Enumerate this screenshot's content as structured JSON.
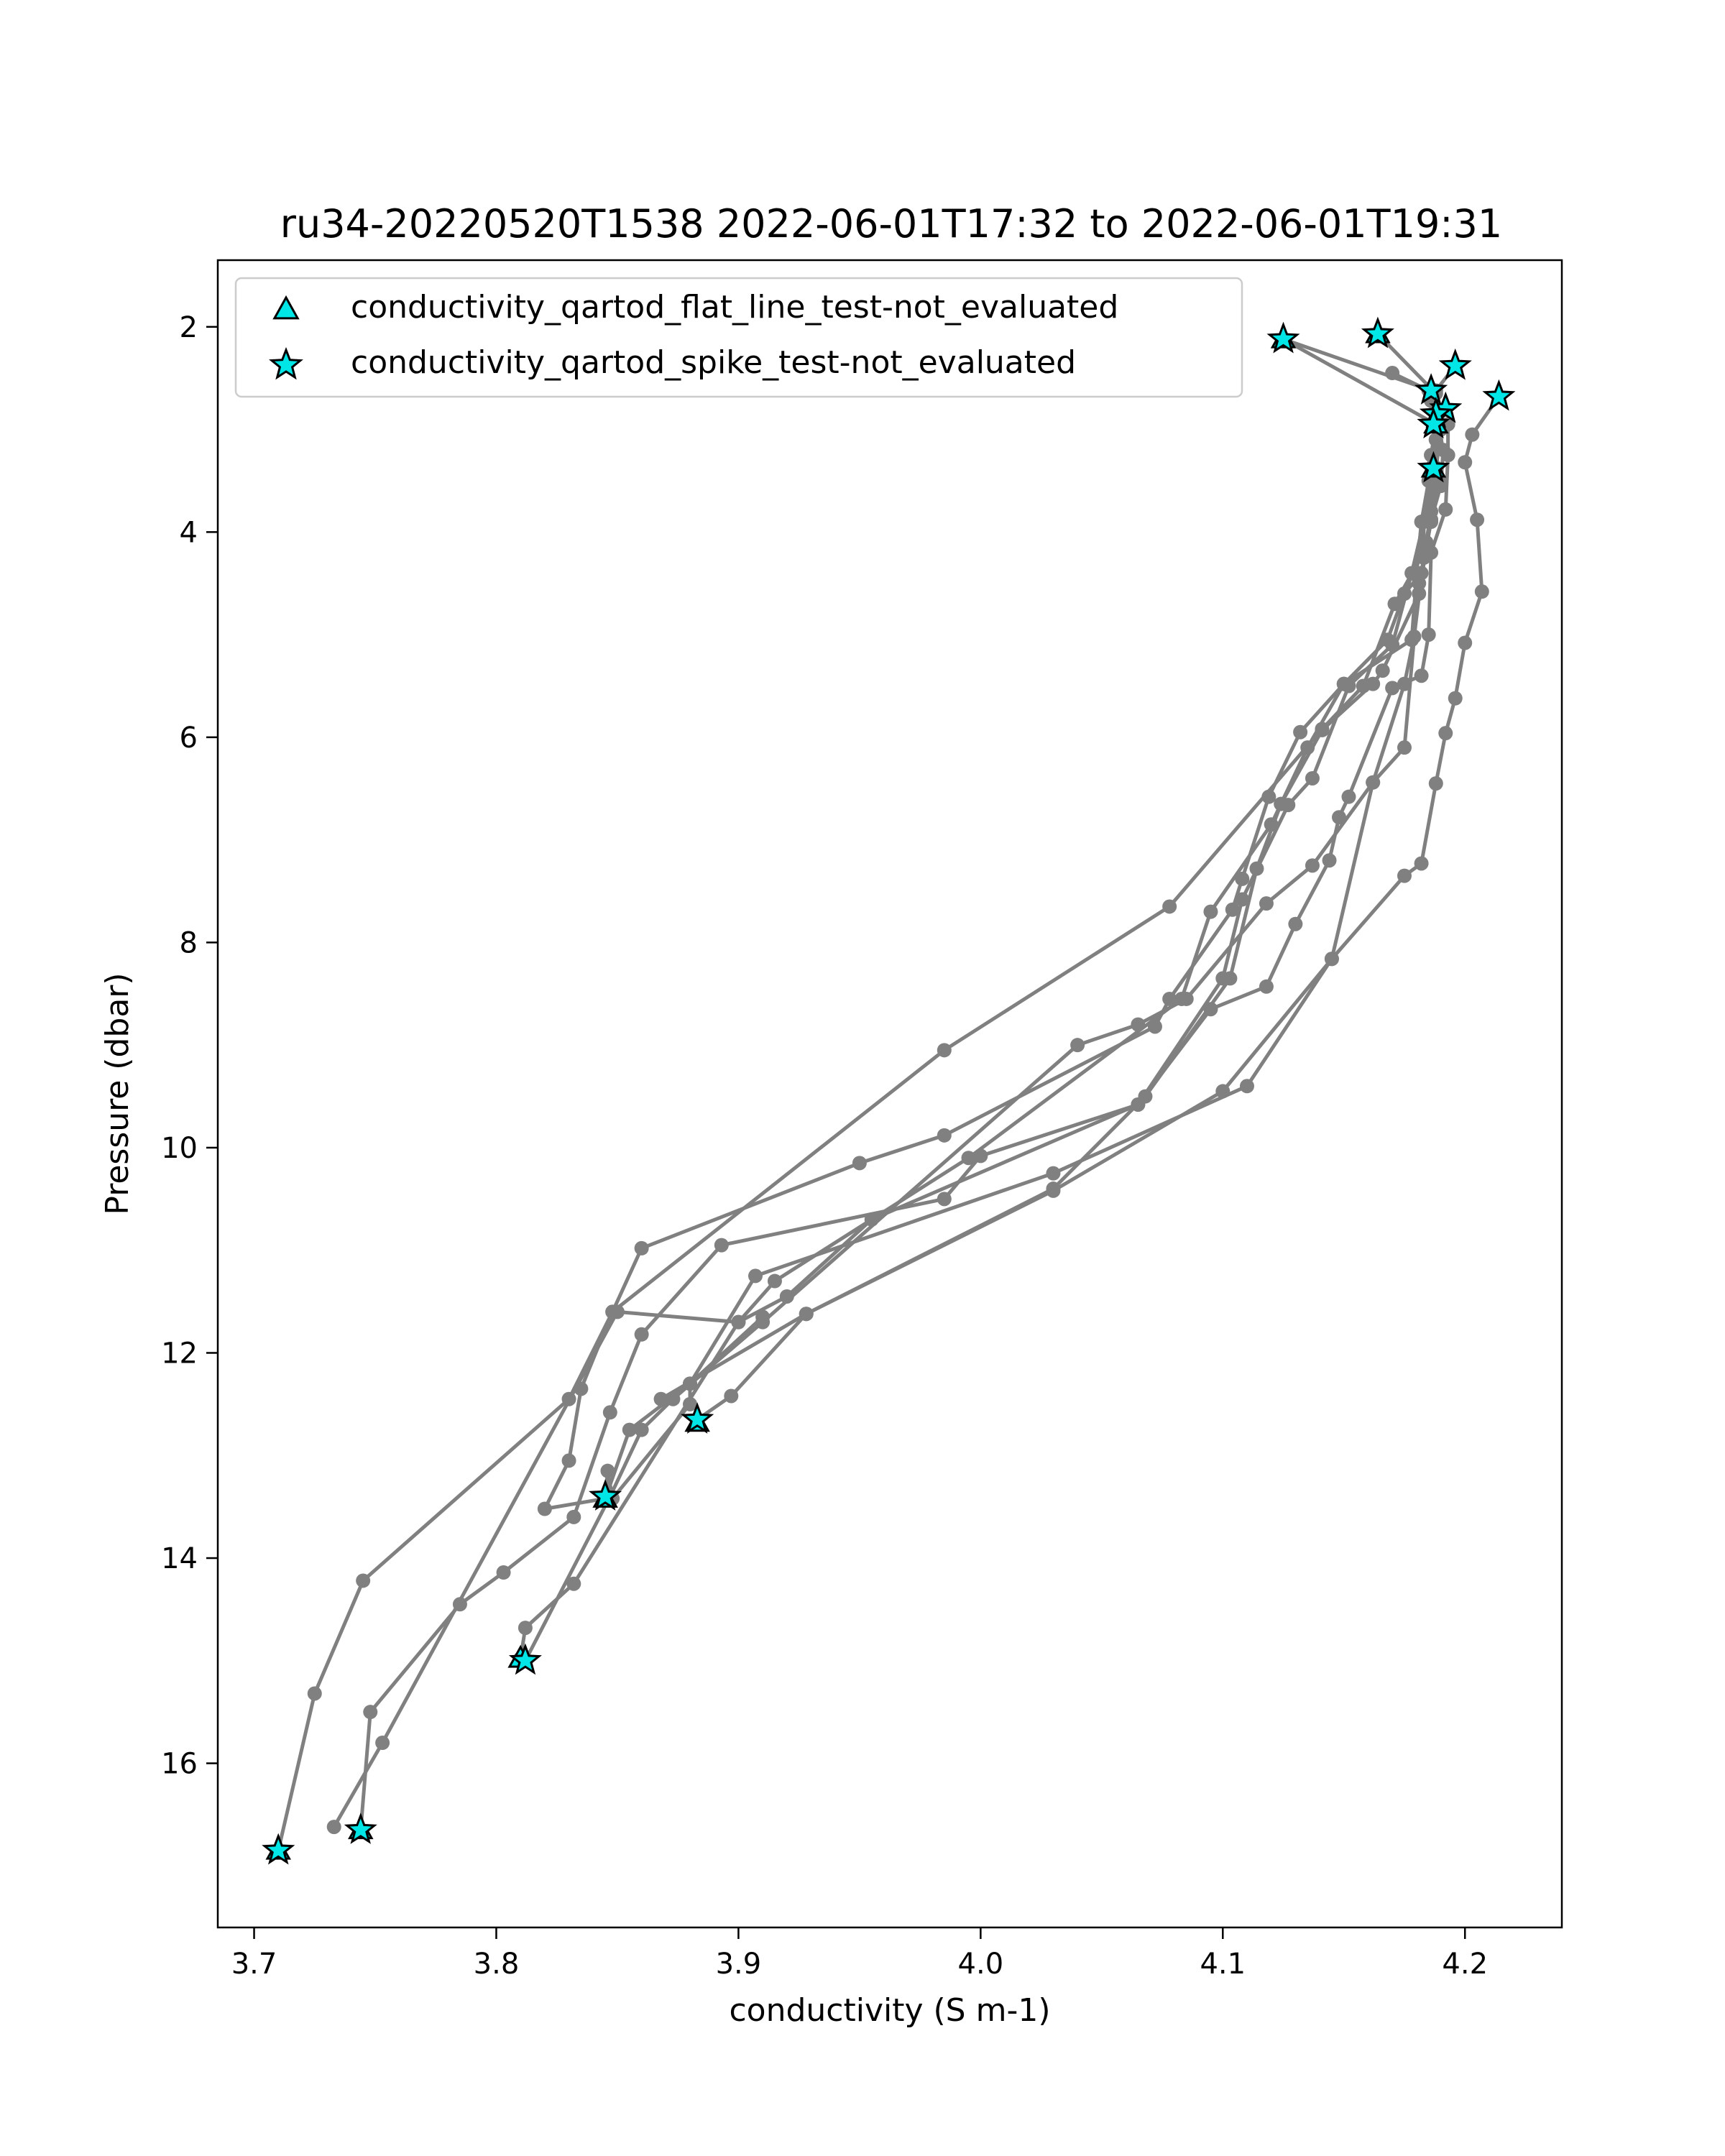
{
  "chart_data": {
    "type": "line",
    "title": "ru34-20220520T1538 2022-06-01T17:32 to 2022-06-01T19:31",
    "xlabel": "conductivity (S m-1)",
    "ylabel": "Pressure (dbar)",
    "xlim": [
      3.685,
      4.24
    ],
    "ylim": [
      17.6,
      1.35
    ],
    "y_inverted": true,
    "x_ticks": [
      "3.7",
      "3.8",
      "3.9",
      "4.0",
      "4.1",
      "4.2"
    ],
    "x_tick_values": [
      3.7,
      3.8,
      3.9,
      4.0,
      4.1,
      4.2
    ],
    "y_ticks": [
      "2",
      "4",
      "6",
      "8",
      "10",
      "12",
      "14",
      "16"
    ],
    "y_tick_values": [
      2,
      4,
      6,
      8,
      10,
      12,
      14,
      16
    ],
    "grid": false,
    "legend_position": "upper-left",
    "line_color": "#808080",
    "marker_color": "#00e5e5",
    "legend": [
      {
        "label": "conductivity_qartod_flat_line_test-not_evaluated",
        "marker": "triangle"
      },
      {
        "label": "conductivity_qartod_spike_test-not_evaluated",
        "marker": "star"
      }
    ],
    "series": [
      {
        "points": [
          [
            4.125,
            2.12
          ],
          [
            4.188,
            2.95
          ],
          [
            4.186,
            3.25
          ],
          [
            4.186,
            3.8
          ],
          [
            4.184,
            4.1
          ],
          [
            4.182,
            4.4
          ],
          [
            4.175,
            4.6
          ],
          [
            4.168,
            5.05
          ],
          [
            4.15,
            5.48
          ],
          [
            4.132,
            5.95
          ],
          [
            4.119,
            6.58
          ],
          [
            4.108,
            7.38
          ],
          [
            4.104,
            7.68
          ],
          [
            4.078,
            8.55
          ],
          [
            4.072,
            8.82
          ],
          [
            3.985,
            9.88
          ],
          [
            3.95,
            10.15
          ],
          [
            3.86,
            10.98
          ],
          [
            3.848,
            11.6
          ],
          [
            3.83,
            12.45
          ],
          [
            3.745,
            14.22
          ],
          [
            3.725,
            15.32
          ],
          [
            3.71,
            16.85
          ]
        ]
      },
      {
        "points": [
          [
            4.164,
            2.07
          ],
          [
            4.188,
            2.65
          ],
          [
            4.19,
            3.0
          ],
          [
            4.188,
            3.4
          ],
          [
            4.186,
            3.88
          ],
          [
            4.183,
            4.2
          ],
          [
            4.171,
            4.7
          ],
          [
            4.158,
            5.5
          ],
          [
            4.141,
            5.92
          ],
          [
            4.078,
            7.65
          ],
          [
            3.985,
            9.05
          ],
          [
            3.848,
            11.6
          ],
          [
            3.835,
            12.35
          ],
          [
            3.83,
            13.05
          ],
          [
            3.82,
            13.52
          ],
          [
            3.845,
            13.42
          ],
          [
            3.855,
            12.75
          ],
          [
            3.88,
            12.3
          ],
          [
            3.91,
            11.65
          ]
        ]
      },
      {
        "points": [
          [
            4.196,
            2.38
          ],
          [
            4.188,
            2.62
          ],
          [
            4.191,
            2.97
          ],
          [
            4.187,
            3.35
          ],
          [
            4.183,
            3.9
          ],
          [
            4.178,
            4.4
          ],
          [
            4.17,
            5.1
          ],
          [
            4.152,
            5.5
          ],
          [
            4.137,
            6.4
          ],
          [
            4.127,
            6.66
          ],
          [
            4.108,
            7.58
          ],
          [
            4.1,
            8.35
          ],
          [
            4.065,
            9.58
          ],
          [
            4.0,
            10.08
          ],
          [
            3.985,
            10.5
          ],
          [
            3.893,
            10.95
          ],
          [
            3.86,
            11.82
          ],
          [
            3.847,
            12.58
          ],
          [
            3.832,
            13.6
          ],
          [
            3.803,
            14.14
          ],
          [
            3.785,
            14.45
          ],
          [
            3.748,
            15.5
          ],
          [
            3.744,
            16.65
          ]
        ]
      },
      {
        "points": [
          [
            4.214,
            2.68
          ],
          [
            4.203,
            3.05
          ],
          [
            4.2,
            3.32
          ],
          [
            4.205,
            3.88
          ],
          [
            4.207,
            4.58
          ],
          [
            4.2,
            5.08
          ],
          [
            4.196,
            5.62
          ],
          [
            4.192,
            5.96
          ],
          [
            4.188,
            6.45
          ],
          [
            4.182,
            7.23
          ],
          [
            4.175,
            7.35
          ],
          [
            4.145,
            8.16
          ],
          [
            4.11,
            9.4
          ],
          [
            4.03,
            10.25
          ],
          [
            3.907,
            11.25
          ],
          [
            3.88,
            12.3
          ],
          [
            3.88,
            12.5
          ],
          [
            3.848,
            13.42
          ],
          [
            3.846,
            13.15
          ],
          [
            3.845,
            13.4
          ]
        ]
      },
      {
        "points": [
          [
            4.188,
            2.82
          ],
          [
            4.193,
            2.95
          ],
          [
            4.193,
            3.25
          ],
          [
            4.192,
            3.78
          ],
          [
            4.186,
            4.2
          ],
          [
            4.185,
            5.0
          ],
          [
            4.182,
            5.4
          ],
          [
            4.17,
            5.52
          ],
          [
            4.152,
            6.58
          ],
          [
            4.148,
            6.78
          ],
          [
            4.144,
            7.2
          ],
          [
            4.13,
            7.82
          ],
          [
            4.118,
            8.43
          ],
          [
            4.095,
            8.65
          ],
          [
            4.065,
            9.58
          ],
          [
            3.955,
            10.7
          ],
          [
            3.92,
            11.45
          ],
          [
            3.9,
            11.7
          ],
          [
            3.832,
            14.25
          ],
          [
            3.812,
            14.68
          ],
          [
            3.81,
            14.98
          ]
        ]
      },
      {
        "points": [
          [
            4.186,
            2.72
          ],
          [
            4.188,
            3.1
          ],
          [
            4.187,
            3.55
          ],
          [
            4.183,
            3.9
          ],
          [
            4.183,
            4.25
          ],
          [
            4.179,
            5.02
          ],
          [
            4.175,
            5.48
          ],
          [
            4.162,
            6.44
          ],
          [
            4.137,
            7.25
          ],
          [
            4.118,
            7.62
          ],
          [
            4.085,
            8.55
          ],
          [
            4.065,
            8.8
          ],
          [
            4.04,
            9.0
          ],
          [
            3.91,
            11.7
          ],
          [
            3.873,
            12.45
          ],
          [
            3.86,
            12.75
          ],
          [
            3.847,
            13.4
          ],
          [
            3.812,
            15.0
          ]
        ]
      },
      {
        "points": [
          [
            4.188,
            2.82
          ],
          [
            4.191,
            3.2
          ],
          [
            4.19,
            3.55
          ],
          [
            4.186,
            3.88
          ],
          [
            4.181,
            4.6
          ],
          [
            4.166,
            5.35
          ],
          [
            4.162,
            5.48
          ],
          [
            4.141,
            5.93
          ],
          [
            4.124,
            6.65
          ],
          [
            4.114,
            7.28
          ],
          [
            4.103,
            8.35
          ],
          [
            4.068,
            9.5
          ],
          [
            4.03,
            10.4
          ],
          [
            3.928,
            11.62
          ],
          [
            3.868,
            12.45
          ]
        ]
      },
      {
        "points": [
          [
            4.125,
            2.12
          ],
          [
            4.186,
            2.62
          ],
          [
            4.188,
            3.1
          ],
          [
            4.189,
            3.48
          ],
          [
            4.186,
            3.9
          ],
          [
            4.181,
            4.5
          ],
          [
            4.175,
            6.1
          ],
          [
            4.162,
            6.44
          ],
          [
            4.145,
            8.16
          ],
          [
            4.1,
            9.45
          ],
          [
            4.03,
            10.42
          ],
          [
            3.928,
            11.62
          ],
          [
            3.897,
            12.42
          ],
          [
            3.883,
            12.65
          ]
        ]
      },
      {
        "points": [
          [
            4.17,
            2.45
          ],
          [
            4.185,
            2.62
          ],
          [
            4.188,
            2.95
          ],
          [
            4.185,
            3.5
          ],
          [
            4.182,
            3.9
          ],
          [
            4.18,
            4.42
          ],
          [
            4.178,
            5.05
          ],
          [
            4.15,
            5.48
          ],
          [
            4.135,
            6.1
          ],
          [
            4.12,
            6.85
          ],
          [
            4.095,
            7.7
          ],
          [
            4.083,
            8.55
          ],
          [
            3.995,
            10.1
          ],
          [
            3.915,
            11.3
          ],
          [
            3.9,
            11.7
          ],
          [
            3.85,
            11.6
          ],
          [
            3.753,
            15.8
          ],
          [
            3.733,
            16.62
          ]
        ]
      }
    ],
    "triangle_markers": [
      [
        4.125,
        2.12
      ],
      [
        4.164,
        2.07
      ],
      [
        4.188,
        2.95
      ],
      [
        4.187,
        3.38
      ],
      [
        3.883,
        12.68
      ],
      [
        3.845,
        13.42
      ],
      [
        3.81,
        14.98
      ],
      [
        3.744,
        16.65
      ],
      [
        3.71,
        16.85
      ]
    ],
    "star_markers": [
      [
        4.125,
        2.12
      ],
      [
        4.164,
        2.07
      ],
      [
        4.196,
        2.38
      ],
      [
        4.214,
        2.68
      ],
      [
        4.186,
        2.62
      ],
      [
        4.192,
        2.8
      ],
      [
        4.188,
        2.85
      ],
      [
        4.187,
        2.95
      ],
      [
        4.187,
        3.38
      ],
      [
        3.883,
        12.65
      ],
      [
        3.845,
        13.4
      ],
      [
        3.812,
        15.0
      ],
      [
        3.744,
        16.65
      ],
      [
        3.71,
        16.85
      ]
    ]
  }
}
